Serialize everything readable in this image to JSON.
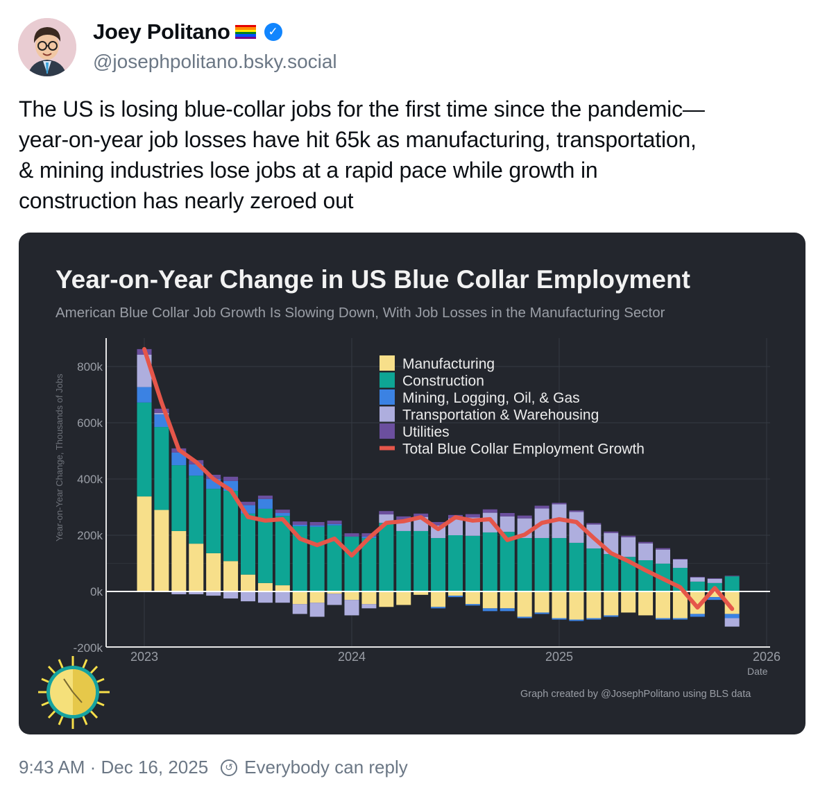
{
  "author": {
    "display_name": "Joey Politano",
    "handle": "@josephpolitano.bsky.social",
    "verified": true,
    "flag_icon": "rainbow-flag-icon",
    "badge_icon": "verified-check-icon"
  },
  "post": {
    "lines": [
      "The US is losing blue-collar jobs for the first time since the pandemic—",
      "year-on-year job losses have hit 65k as manufacturing, transportation,",
      "& mining industries lose jobs at a rapid pace while growth in",
      "construction has nearly zeroed out"
    ]
  },
  "footer": {
    "timestamp": "9:43 AM · Dec 16, 2025",
    "reply_setting": "Everybody can reply"
  },
  "colors": {
    "manufacturing": "#f7df8a",
    "construction": "#0ea594",
    "mining": "#3b82e3",
    "transport": "#aeaede",
    "utilities": "#6b4f9e",
    "total": "#e5564a",
    "chart_bg": "#23262d"
  },
  "chart_data": {
    "type": "bar",
    "title": "Year-on-Year Change in US Blue Collar Employment",
    "subtitle": "American Blue Collar Job Growth Is Slowing Down, With Job Losses in the Manufacturing Sector",
    "ylabel": "Year-on-Year Change, Thousands of Jobs",
    "xlabel": "Date",
    "ylim": [
      -200,
      900
    ],
    "yticks": [
      -200,
      0,
      200,
      400,
      600,
      800
    ],
    "ytick_labels": [
      "-200k",
      "0k",
      "200k",
      "400k",
      "600k",
      "800k"
    ],
    "xticks": [
      "2023",
      "2024",
      "2025",
      "2026"
    ],
    "x_start": "2023-01",
    "x_end": "2025-11",
    "grid": true,
    "legend_position": "top-center",
    "credit": "Graph created by @JosephPolitano using BLS data",
    "series": [
      {
        "name": "Manufacturing",
        "key": "manufacturing",
        "kind": "bar",
        "values": [
          338,
          290,
          215,
          170,
          136,
          108,
          60,
          30,
          22,
          -45,
          -40,
          -8,
          -30,
          -45,
          -55,
          -48,
          -12,
          -55,
          -15,
          -45,
          -60,
          -60,
          -90,
          -75,
          -95,
          -100,
          -95,
          -85,
          -75,
          -85,
          -95,
          -95,
          -80,
          -20,
          -80
        ]
      },
      {
        "name": "Construction",
        "key": "construction",
        "kind": "bar",
        "values": [
          334,
          295,
          234,
          242,
          229,
          250,
          217,
          264,
          247,
          232,
          230,
          235,
          195,
          190,
          244,
          215,
          215,
          190,
          200,
          198,
          210,
          212,
          190,
          190,
          190,
          173,
          153,
          133,
          123,
          111,
          99,
          84,
          35,
          30,
          54
        ]
      },
      {
        "name": "Mining, Logging, Oil, & Gas",
        "key": "mining",
        "kind": "bar",
        "values": [
          55,
          45,
          45,
          40,
          35,
          35,
          30,
          35,
          10,
          5,
          5,
          5,
          0,
          5,
          0,
          0,
          0,
          -5,
          -5,
          -5,
          -10,
          -10,
          -5,
          -5,
          -5,
          -5,
          -5,
          -5,
          0,
          0,
          -5,
          -5,
          -10,
          -10,
          -15
        ]
      },
      {
        "name": "Transportation & Warehousing",
        "key": "transport",
        "kind": "bar",
        "values": [
          115,
          5,
          -10,
          -10,
          -15,
          -25,
          -35,
          -40,
          -40,
          -35,
          -50,
          -40,
          -55,
          -15,
          30,
          40,
          50,
          45,
          60,
          65,
          70,
          55,
          70,
          105,
          120,
          110,
          85,
          75,
          70,
          60,
          50,
          30,
          15,
          15,
          -30
        ]
      },
      {
        "name": "Utilities",
        "key": "utilities",
        "kind": "bar",
        "values": [
          20,
          15,
          15,
          15,
          15,
          15,
          12,
          12,
          12,
          12,
          12,
          12,
          12,
          12,
          12,
          12,
          12,
          12,
          12,
          12,
          12,
          12,
          10,
          10,
          5,
          5,
          5,
          5,
          5,
          5,
          5,
          2,
          2,
          2,
          2
        ]
      },
      {
        "name": "Total Blue Collar Employment Growth",
        "key": "total",
        "kind": "line",
        "values": [
          862,
          672,
          504,
          460,
          400,
          360,
          265,
          252,
          257,
          188,
          165,
          188,
          128,
          190,
          244,
          250,
          264,
          222,
          264,
          252,
          257,
          183,
          202,
          244,
          257,
          247,
          190,
          136,
          108,
          75,
          45,
          15,
          -57,
          12,
          -62
        ]
      }
    ]
  }
}
